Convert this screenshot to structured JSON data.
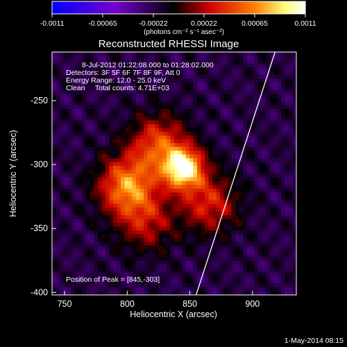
{
  "colorbar": {
    "ticks": [
      "-0.0011",
      "-0.00065",
      "-0.00022",
      "0.00022",
      "0.00065",
      "0.0011"
    ],
    "unit_label": "(photons cm⁻² s⁻¹ asec⁻²)",
    "range": [
      -0.0011,
      0.0011
    ],
    "colormap": [
      "#0000ff",
      "#7700cc",
      "#000000",
      "#cc0000",
      "#ff8000",
      "#ffff80",
      "#ffffff"
    ]
  },
  "chart_data": {
    "type": "heatmap",
    "title": "Reconstructed RHESSI Image",
    "annotations": [
      "8-Jul-2012 01:22:08.000 to 01:28:02.000",
      "Detectors: 3F 5F 6F 7F 8F 9F, Att 0",
      "Energy Range: 12.0 - 25.0 keV",
      "Clean     Total counts: 4.71E+03"
    ],
    "peak_label": "Position of Peak = [845,-303]",
    "xlabel": "Heliocentric X (arcsec)",
    "ylabel": "Heliocentric Y (arcsec)",
    "xlim": [
      740,
      935
    ],
    "ylim": [
      -402,
      -212
    ],
    "xticks": [
      750,
      800,
      850,
      900
    ],
    "yticks": [
      -250,
      -300,
      -350,
      -400
    ],
    "peak": [
      845,
      -303
    ],
    "sources": [
      {
        "x": 845,
        "y": -303,
        "intensity": 1.0
      },
      {
        "x": 800,
        "y": -317,
        "intensity": 0.7
      },
      {
        "x": 825,
        "y": -285,
        "intensity": 0.55
      },
      {
        "x": 865,
        "y": -330,
        "intensity": 0.45
      },
      {
        "x": 815,
        "y": -345,
        "intensity": 0.35
      }
    ],
    "limb_line": [
      [
        855,
        -402
      ],
      [
        918,
        -212
      ]
    ]
  },
  "footer": {
    "date": "1-May-2014 08:15"
  }
}
